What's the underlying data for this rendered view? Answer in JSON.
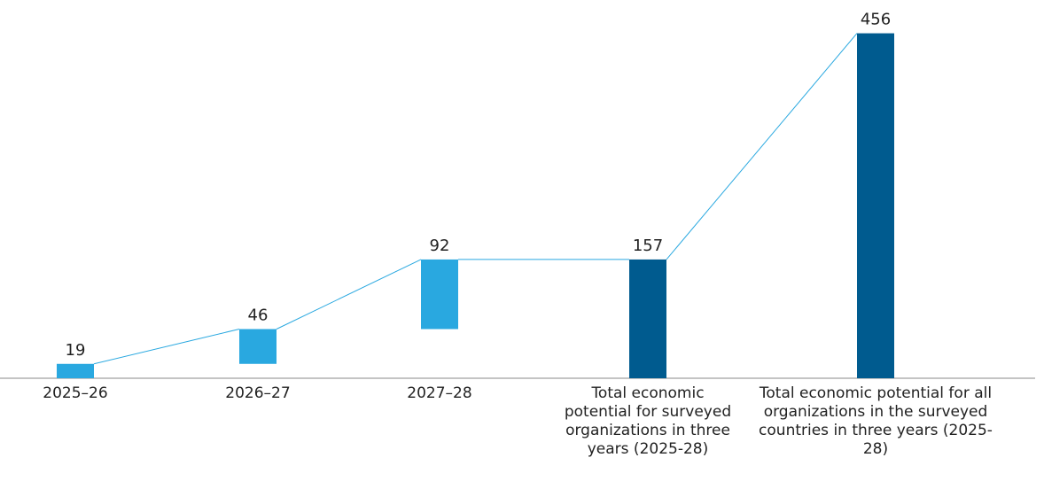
{
  "chart_data": {
    "type": "waterfall",
    "categories": [
      "2025–26",
      "2026–27",
      "2027–28",
      "Total economic potential for surveyed organizations in three years (2025-28)",
      "Total economic potential for all organizations in the surveyed countries in three years (2025-28)"
    ],
    "values": [
      19,
      46,
      92,
      157,
      456
    ],
    "totals": [
      false,
      false,
      false,
      true,
      true
    ],
    "color": "#29a8e0",
    "total_color": "#005b8f",
    "ylim": [
      0,
      500
    ]
  }
}
